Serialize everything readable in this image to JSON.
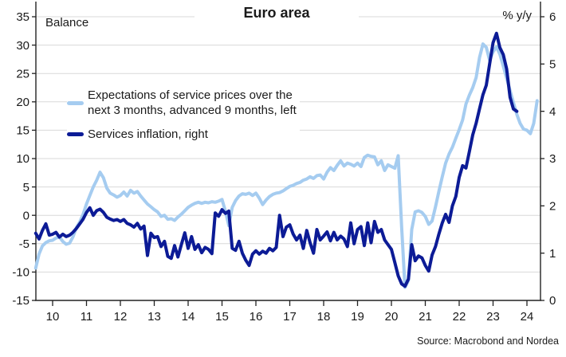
{
  "title": "Euro area",
  "left_axis_label": "Balance",
  "right_axis_label": "% y/y",
  "source": "Source: Macrobond and Nordea",
  "colors": {
    "expectations_line": "#A5CCF0",
    "services_inflation_line": "#0C1B96",
    "gridline": "#d9d9d9",
    "axis": "#222222",
    "text": "#1a1a1a"
  },
  "legend": {
    "items": [
      {
        "label": "Expectations of service prices over the next 3 months, advanced 9 months, left",
        "lines": [
          "Expectations of service prices over the",
          "next 3 months, advanced 9 months, left"
        ],
        "color": "#A5CCF0"
      },
      {
        "label": "Services inflation, right",
        "lines": [
          "Services inflation, right",
          ""
        ],
        "color": "#0C1B96"
      }
    ]
  },
  "chart_data": {
    "type": "line",
    "title": "Euro area",
    "grid": true,
    "legend_position": "upper-left",
    "x_axis": {
      "ticks": [
        10,
        11,
        12,
        13,
        14,
        15,
        16,
        17,
        18,
        19,
        20,
        21,
        22,
        23,
        24
      ],
      "min": 9.45,
      "max": 24.45,
      "unit": "year"
    },
    "left_axis": {
      "label": "Balance",
      "min": -15,
      "max": 35,
      "ticks": [
        35,
        30,
        25,
        20,
        15,
        10,
        5,
        0,
        -5,
        -10,
        -15
      ]
    },
    "right_axis": {
      "label": "% y/y",
      "min": 0,
      "max": 6,
      "ticks": [
        6,
        5,
        4,
        3,
        2,
        1,
        0
      ]
    },
    "series": [
      {
        "name": "Expectations of service prices over the next 3 months, advanced 9 months, left",
        "axis": "left",
        "color": "#A5CCF0",
        "x_start": 9.5,
        "x_step": 0.1,
        "values": [
          -9.3,
          -6.8,
          -5.4,
          -4.8,
          -4.5,
          -4.4,
          -4.0,
          -3.8,
          -4.6,
          -5.1,
          -4.9,
          -3.8,
          -2.2,
          -1.2,
          0.2,
          2.0,
          3.5,
          5.0,
          6.2,
          7.6,
          6.6,
          4.8,
          3.9,
          3.6,
          3.2,
          3.5,
          4.1,
          3.4,
          4.4,
          3.9,
          4.2,
          3.4,
          2.7,
          2.0,
          1.5,
          1.0,
          0.6,
          -0.2,
          0.0,
          -0.7,
          -0.6,
          -0.9,
          -0.3,
          0.2,
          0.8,
          1.4,
          1.8,
          2.1,
          2.3,
          2.1,
          2.3,
          2.2,
          2.4,
          2.3,
          2.5,
          2.8,
          0.7,
          -1.8,
          1.4,
          2.6,
          3.4,
          3.8,
          3.7,
          3.9,
          3.5,
          3.9,
          3.0,
          1.9,
          2.7,
          3.3,
          3.7,
          3.9,
          4.0,
          4.3,
          4.7,
          5.1,
          5.3,
          5.6,
          5.8,
          6.2,
          6.4,
          6.8,
          6.5,
          7.0,
          7.1,
          6.4,
          7.6,
          8.4,
          7.9,
          8.8,
          9.6,
          8.7,
          9.2,
          9.0,
          8.7,
          9.2,
          8.6,
          10.2,
          10.6,
          10.4,
          10.3,
          8.9,
          9.6,
          7.9,
          8.9,
          8.6,
          8.3,
          10.5,
          -2.0,
          -12.7,
          -11.5,
          -2.5,
          0.6,
          0.8,
          0.5,
          -0.2,
          -1.6,
          -1.0,
          1.5,
          4.2,
          6.8,
          9.2,
          10.8,
          12.0,
          13.6,
          15.1,
          16.8,
          19.6,
          21.2,
          22.5,
          24.3,
          27.8,
          30.2,
          29.6,
          27.3,
          28.8,
          29.7,
          28.4,
          26.3,
          24.2,
          22.0,
          19.9,
          17.8,
          16.2,
          15.2,
          15.0,
          14.4,
          16.2,
          20.2
        ]
      },
      {
        "name": "Services inflation, right",
        "axis": "right",
        "color": "#0C1B96",
        "x_start": 9.5,
        "x_step": 0.1,
        "values": [
          1.42,
          1.3,
          1.48,
          1.62,
          1.38,
          1.4,
          1.44,
          1.34,
          1.4,
          1.35,
          1.38,
          1.44,
          1.52,
          1.62,
          1.72,
          1.86,
          1.96,
          1.8,
          1.9,
          1.93,
          1.86,
          1.76,
          1.72,
          1.69,
          1.71,
          1.67,
          1.71,
          1.63,
          1.6,
          1.55,
          1.63,
          1.51,
          1.57,
          0.95,
          1.42,
          1.33,
          1.35,
          1.14,
          1.25,
          0.93,
          0.89,
          1.16,
          0.92,
          1.18,
          1.43,
          1.1,
          1.35,
          1.08,
          1.18,
          1.01,
          1.12,
          1.08,
          0.99,
          1.85,
          1.78,
          1.92,
          1.84,
          1.89,
          1.1,
          1.06,
          1.25,
          1.0,
          0.85,
          0.74,
          0.98,
          1.05,
          0.98,
          1.04,
          1.0,
          1.1,
          1.05,
          1.12,
          1.8,
          1.35,
          1.55,
          1.6,
          1.4,
          1.28,
          1.38,
          1.1,
          1.48,
          1.22,
          1.0,
          1.5,
          1.28,
          1.36,
          1.45,
          1.26,
          1.44,
          1.28,
          1.36,
          1.3,
          1.14,
          1.64,
          1.2,
          1.5,
          1.56,
          1.16,
          1.64,
          1.22,
          1.67,
          1.44,
          1.5,
          1.28,
          1.18,
          1.08,
          0.8,
          0.52,
          0.35,
          0.3,
          0.45,
          1.18,
          0.84,
          0.94,
          0.9,
          0.74,
          0.62,
          0.96,
          1.14,
          1.4,
          1.64,
          1.82,
          1.65,
          2.0,
          2.2,
          2.6,
          2.85,
          2.8,
          3.15,
          3.5,
          3.75,
          4.05,
          4.35,
          4.55,
          5.0,
          5.45,
          5.65,
          5.35,
          5.2,
          4.9,
          4.3,
          4.05,
          4.0
        ]
      }
    ]
  }
}
